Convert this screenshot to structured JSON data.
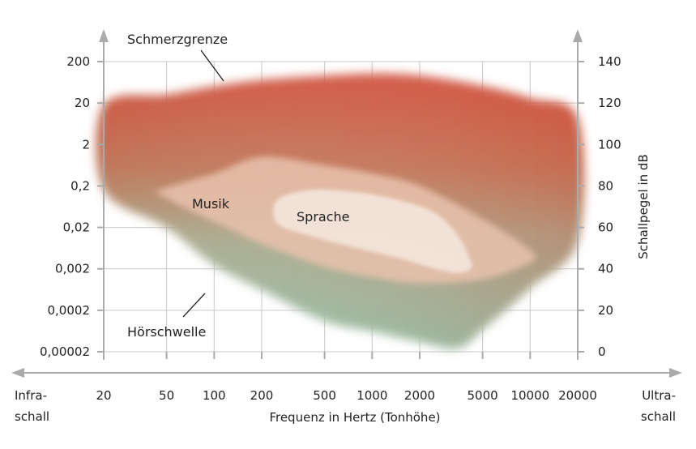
{
  "chart_data": {
    "type": "area",
    "xlabel": "Frequenz in Hertz (Tonhöhe)",
    "ylabel_right": "Schallpegel in dB",
    "x_ticks": [
      20,
      50,
      100,
      200,
      500,
      1000,
      2000,
      5000,
      10000,
      20000
    ],
    "x_tick_labels": [
      "20",
      "50",
      "100",
      "200",
      "500",
      "1000",
      "2000",
      "5000",
      "10000",
      "20000"
    ],
    "y_left_ticks": [
      "200",
      "20",
      "2",
      "0,2",
      "0,02",
      "0,002",
      "0,0002",
      "0,00002"
    ],
    "y_right_ticks": [
      140,
      120,
      100,
      80,
      60,
      40,
      20,
      0
    ],
    "ylim_db": [
      0,
      140
    ],
    "x_left_label": "Infra-\nschall",
    "x_right_label": "Ultra-\nschall",
    "annotations": {
      "pain": "Schmerzgrenze",
      "threshold": "Hörschwelle",
      "music": "Musik",
      "speech": "Sprache"
    },
    "regions": [
      {
        "key": "hearing",
        "color_top": "#cf5a46",
        "color_bottom": "#8fc2a8",
        "upper": [
          [
            20,
            119
          ],
          [
            50,
            124
          ],
          [
            100,
            128
          ],
          [
            200,
            131
          ],
          [
            500,
            133
          ],
          [
            1000,
            134
          ],
          [
            2000,
            133
          ],
          [
            5000,
            128
          ],
          [
            10000,
            122
          ],
          [
            20000,
            112
          ]
        ],
        "lower": [
          [
            20,
            78
          ],
          [
            50,
            60
          ],
          [
            100,
            42
          ],
          [
            200,
            30
          ],
          [
            500,
            15
          ],
          [
            1000,
            10
          ],
          [
            2000,
            5
          ],
          [
            3500,
            2
          ],
          [
            5000,
            11
          ],
          [
            10000,
            31
          ],
          [
            20000,
            54
          ]
        ]
      },
      {
        "key": "music",
        "color": "#e9c2ad",
        "upper": [
          [
            45,
            78
          ],
          [
            100,
            86
          ],
          [
            200,
            94
          ],
          [
            500,
            90
          ],
          [
            1000,
            86
          ],
          [
            2000,
            80
          ],
          [
            5000,
            64
          ],
          [
            10000,
            49
          ]
        ],
        "lower": [
          [
            45,
            76
          ],
          [
            80,
            66
          ],
          [
            120,
            60
          ],
          [
            200,
            52
          ],
          [
            500,
            41
          ],
          [
            1000,
            36
          ],
          [
            2000,
            33
          ],
          [
            5000,
            35
          ],
          [
            10000,
            43
          ]
        ]
      },
      {
        "key": "speech",
        "color": "#f4e6dc",
        "upper": [
          [
            250,
            73
          ],
          [
            400,
            78
          ],
          [
            800,
            77
          ],
          [
            1500,
            73
          ],
          [
            2500,
            67
          ],
          [
            3500,
            56
          ],
          [
            4200,
            44
          ]
        ],
        "lower": [
          [
            250,
            62
          ],
          [
            400,
            56
          ],
          [
            800,
            50
          ],
          [
            1500,
            45
          ],
          [
            2500,
            40
          ],
          [
            3500,
            38
          ],
          [
            4200,
            40
          ]
        ]
      }
    ]
  }
}
